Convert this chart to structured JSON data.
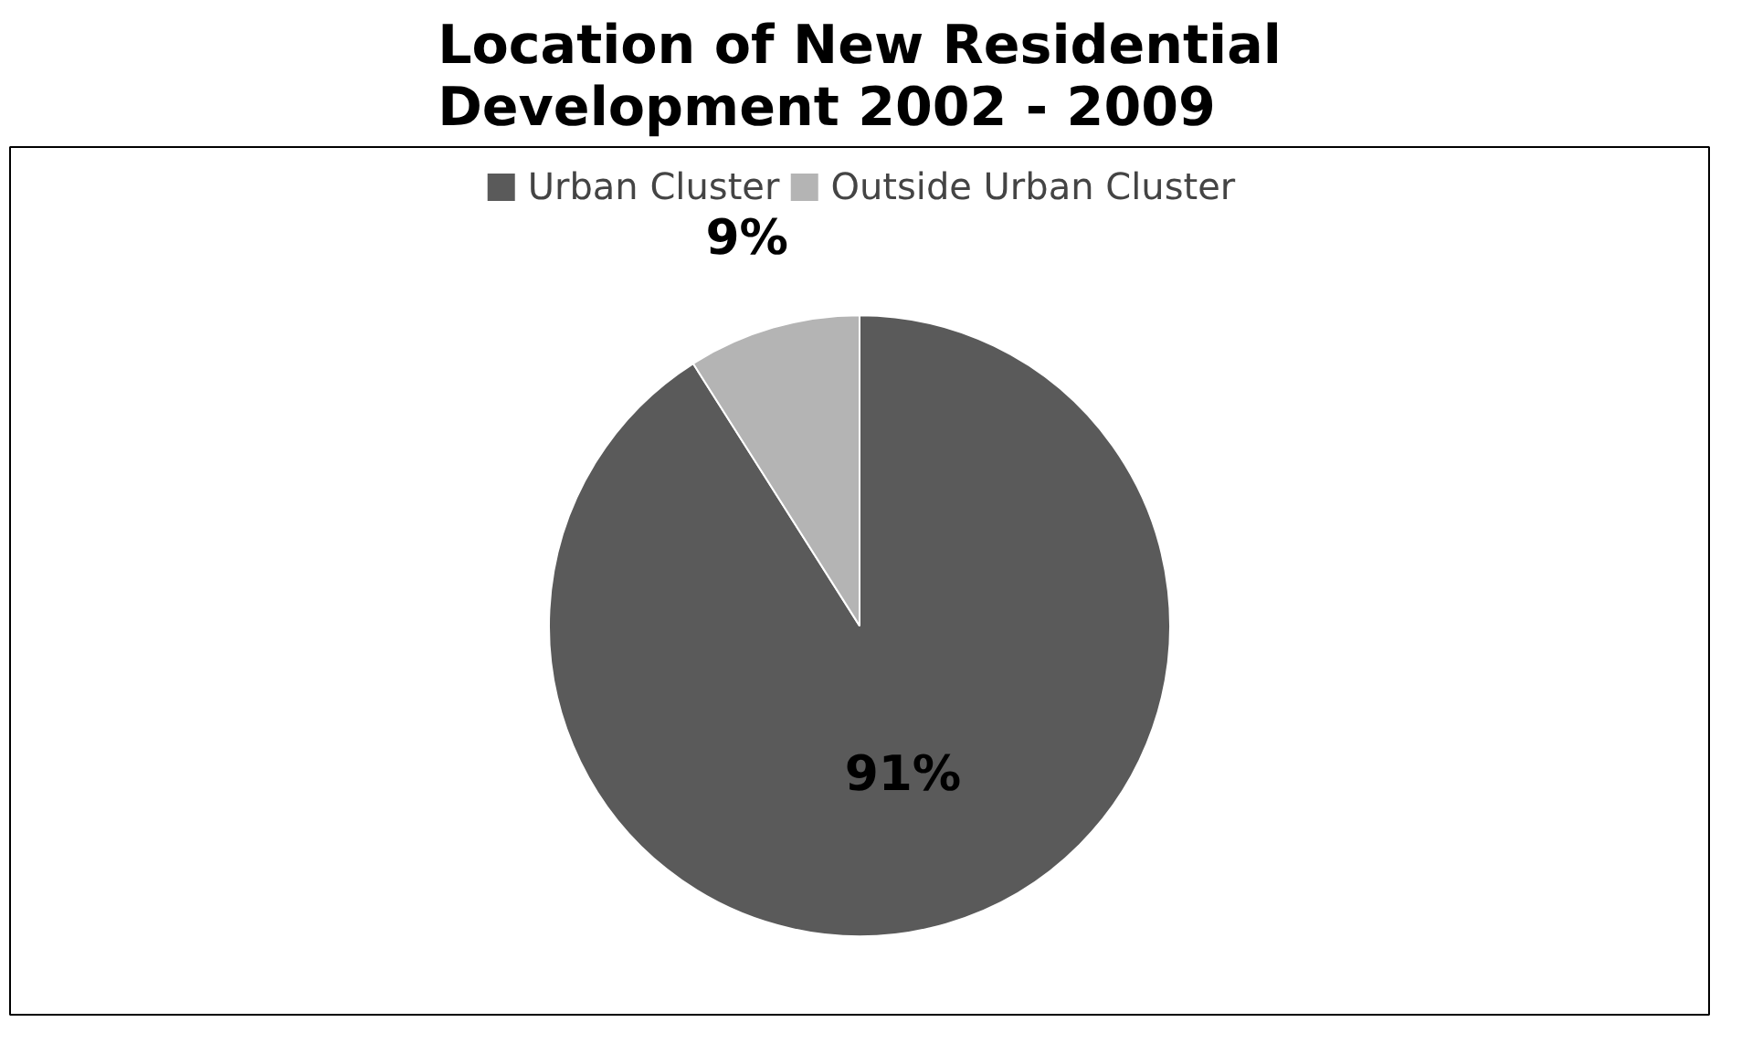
{
  "chart_data": {
    "type": "pie",
    "title": "Location of New Residential Development 2002 - 2009",
    "categories": [
      "Urban Cluster",
      "Outside Urban Cluster"
    ],
    "values": [
      91,
      9
    ],
    "colors": [
      "#5a5a5a",
      "#b4b4b4"
    ],
    "value_labels": [
      "91%",
      "9%"
    ],
    "legend": "top"
  }
}
